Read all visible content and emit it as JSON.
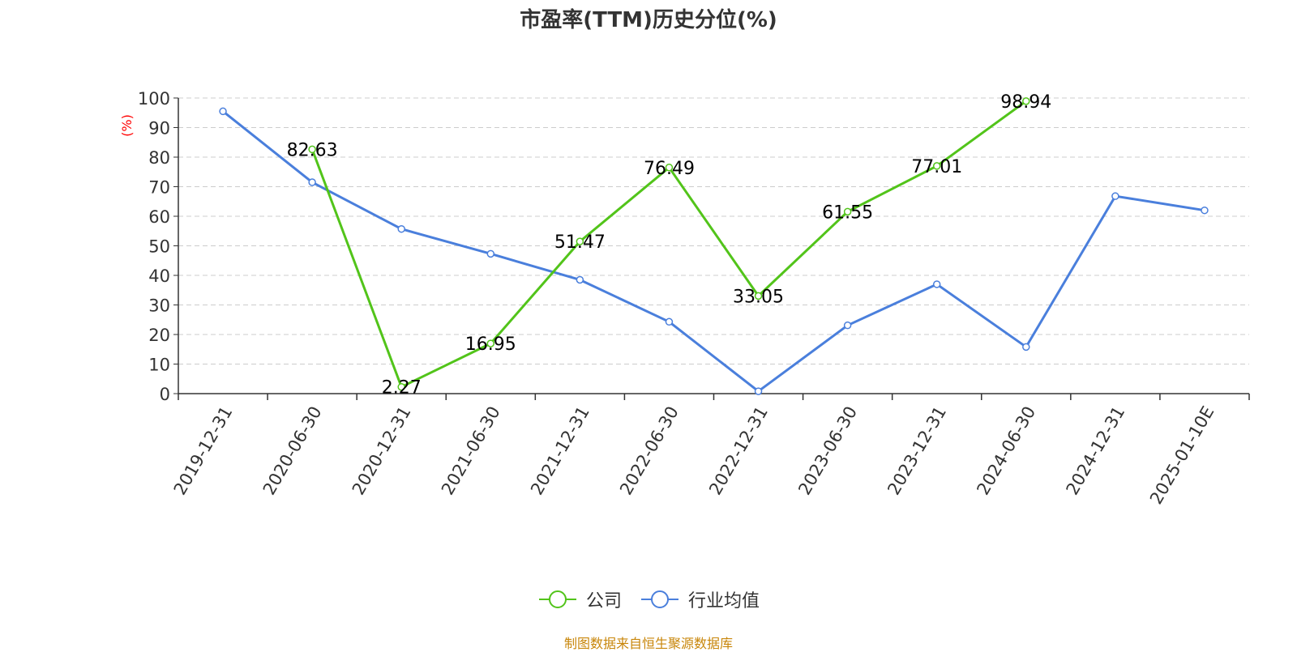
{
  "chart_data": {
    "type": "line",
    "title": "市盈率(TTM)历史分位(%)",
    "ylabel": "(%)",
    "ylim": [
      0,
      100
    ],
    "yticks": [
      0,
      10,
      20,
      30,
      40,
      50,
      60,
      70,
      80,
      90,
      100
    ],
    "grid": true,
    "legend_position": "bottom",
    "categories": [
      "2019-12-31",
      "2020-06-30",
      "2020-12-31",
      "2021-06-30",
      "2021-12-31",
      "2022-06-30",
      "2022-12-31",
      "2023-06-30",
      "2023-12-31",
      "2024-06-30",
      "2024-12-31",
      "2025-01-10E"
    ],
    "series": [
      {
        "name": "公司",
        "color": "#52c41a",
        "values": [
          null,
          82.63,
          2.27,
          16.95,
          51.47,
          76.49,
          33.05,
          61.55,
          77.01,
          98.94,
          null,
          null
        ],
        "labels": [
          null,
          "82.63",
          "2.27",
          "16.95",
          "51.47",
          "76.49",
          "33.05",
          "61.55",
          "77.01",
          "98.94",
          null,
          null
        ]
      },
      {
        "name": "行业均值",
        "color": "#4a7fdc",
        "values": [
          95.5,
          71.5,
          55.7,
          47.3,
          38.5,
          24.3,
          0.8,
          23.1,
          37.0,
          15.8,
          66.8,
          62.0
        ]
      }
    ]
  },
  "source_note": "制图数据来自恒生聚源数据库",
  "source_color": "#c8860a",
  "axis_label_color": "#ff0000"
}
